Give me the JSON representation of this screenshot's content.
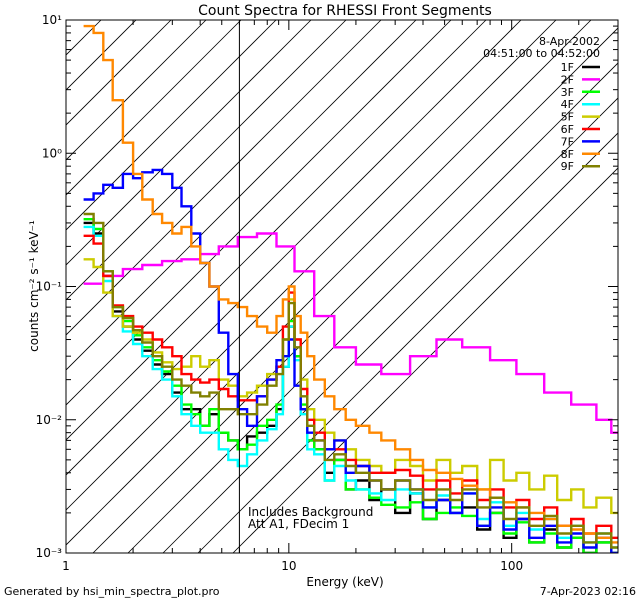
{
  "chart_data": {
    "type": "line",
    "style": "step",
    "title": "Count Spectra for RHESSI Front Segments",
    "xlabel": "Energy (keV)",
    "ylabel": "counts cm⁻² s⁻¹ keV⁻¹",
    "xscale": "log",
    "yscale": "log",
    "xlim": [
      1,
      300
    ],
    "ylim": [
      0.001,
      10
    ],
    "x_ticks": [
      {
        "value": 1,
        "label": "1"
      },
      {
        "value": 10,
        "label": "10"
      },
      {
        "value": 100,
        "label": "100"
      }
    ],
    "y_ticks": [
      {
        "value": 0.001,
        "label": "10⁻³"
      },
      {
        "value": 0.01,
        "label": "10⁻²"
      },
      {
        "value": 0.1,
        "label": "10⁻¹"
      },
      {
        "value": 1,
        "label": "10⁰"
      },
      {
        "value": 10,
        "label": "10¹"
      }
    ],
    "hatched_region_xlim": [
      1,
      6
    ],
    "legend_position": "top-right",
    "annotations": [
      "8-Apr-2002",
      "04:51:00 to 04:52:00"
    ],
    "note_lines": [
      "Includes Background",
      "Att A1, FDecim 1"
    ],
    "series": [
      {
        "name": "1F",
        "color": "#000000",
        "x": [
          1.2,
          1.33,
          1.47,
          1.62,
          1.8,
          2.0,
          2.2,
          2.45,
          2.7,
          3.0,
          3.3,
          3.65,
          4.0,
          4.4,
          4.85,
          5.35,
          5.9,
          6.5,
          7.2,
          8.0,
          8.8,
          9.4,
          10.0,
          10.6,
          11.3,
          12.1,
          13.0,
          14.5,
          16,
          18,
          20,
          23,
          26,
          30,
          35,
          40,
          46,
          53,
          60,
          70,
          80,
          92,
          105,
          120,
          140,
          160,
          185,
          210,
          240,
          280
        ],
        "values": [
          0.3,
          0.25,
          0.12,
          0.065,
          0.05,
          0.04,
          0.033,
          0.026,
          0.022,
          0.016,
          0.012,
          0.012,
          0.009,
          0.011,
          0.008,
          0.007,
          0.006,
          0.0075,
          0.008,
          0.009,
          0.012,
          0.025,
          0.05,
          0.03,
          0.012,
          0.007,
          0.006,
          0.004,
          0.005,
          0.003,
          0.0035,
          0.0025,
          0.003,
          0.002,
          0.0028,
          0.0018,
          0.0025,
          0.002,
          0.0022,
          0.0015,
          0.002,
          0.0013,
          0.0018,
          0.0012,
          0.0015,
          0.0011,
          0.0013,
          0.001,
          0.0012,
          0.001
        ]
      },
      {
        "name": "2F",
        "color": "#ff00ff",
        "x": [
          1.2,
          1.47,
          1.8,
          2.2,
          2.7,
          3.3,
          4.0,
          4.85,
          5.9,
          7.2,
          8.8,
          10.6,
          13.0,
          16,
          20,
          26,
          35,
          46,
          60,
          80,
          105,
          140,
          185,
          240,
          280
        ],
        "values": [
          0.105,
          0.12,
          0.135,
          0.145,
          0.155,
          0.16,
          0.175,
          0.2,
          0.235,
          0.25,
          0.2,
          0.13,
          0.06,
          0.035,
          0.026,
          0.022,
          0.03,
          0.04,
          0.035,
          0.028,
          0.022,
          0.016,
          0.013,
          0.01,
          0.008
        ]
      },
      {
        "name": "3F",
        "color": "#00ff00",
        "x": [
          1.2,
          1.33,
          1.47,
          1.62,
          1.8,
          2.0,
          2.2,
          2.45,
          2.7,
          3.0,
          3.3,
          3.65,
          4.0,
          4.4,
          4.85,
          5.35,
          5.9,
          6.5,
          7.2,
          8.0,
          8.8,
          9.4,
          10.0,
          10.6,
          11.3,
          12.1,
          13.0,
          14.5,
          16,
          18,
          20,
          23,
          26,
          30,
          35,
          40,
          46,
          53,
          60,
          70,
          80,
          92,
          105,
          120,
          140,
          160,
          185,
          210,
          240,
          280
        ],
        "values": [
          0.32,
          0.27,
          0.13,
          0.07,
          0.055,
          0.043,
          0.035,
          0.028,
          0.023,
          0.018,
          0.013,
          0.011,
          0.009,
          0.012,
          0.008,
          0.007,
          0.006,
          0.0065,
          0.009,
          0.01,
          0.013,
          0.03,
          0.055,
          0.03,
          0.013,
          0.007,
          0.006,
          0.0035,
          0.005,
          0.003,
          0.003,
          0.0026,
          0.0023,
          0.0022,
          0.0024,
          0.0018,
          0.002,
          0.0022,
          0.0019,
          0.0016,
          0.002,
          0.0014,
          0.0017,
          0.0012,
          0.0014,
          0.0011,
          0.0013,
          0.001,
          0.0012,
          0.001
        ]
      },
      {
        "name": "4F",
        "color": "#00ffff",
        "x": [
          1.2,
          1.33,
          1.47,
          1.62,
          1.8,
          2.0,
          2.2,
          2.45,
          2.7,
          3.0,
          3.3,
          3.65,
          4.0,
          4.4,
          4.85,
          5.35,
          5.9,
          6.5,
          7.2,
          8.0,
          8.8,
          9.4,
          10.0,
          10.6,
          11.3,
          12.1,
          13.0,
          14.5,
          16,
          18,
          20,
          23,
          26,
          30,
          35,
          40,
          46,
          53,
          60,
          70,
          80,
          92,
          105,
          120,
          140,
          160,
          185,
          210,
          240,
          280
        ],
        "values": [
          0.28,
          0.24,
          0.11,
          0.06,
          0.046,
          0.037,
          0.03,
          0.024,
          0.02,
          0.015,
          0.011,
          0.009,
          0.008,
          0.008,
          0.006,
          0.005,
          0.0045,
          0.0055,
          0.007,
          0.0085,
          0.011,
          0.025,
          0.05,
          0.028,
          0.011,
          0.006,
          0.0055,
          0.0035,
          0.0045,
          0.0035,
          0.003,
          0.0028,
          0.0025,
          0.003,
          0.0028,
          0.0022,
          0.0027,
          0.002,
          0.0028,
          0.0018,
          0.0024,
          0.0016,
          0.002,
          0.0015,
          0.0018,
          0.0013,
          0.0016,
          0.0012,
          0.0014,
          0.0011
        ]
      },
      {
        "name": "5F",
        "color": "#cccc00",
        "x": [
          1.2,
          1.33,
          1.47,
          1.62,
          1.8,
          2.0,
          2.2,
          2.45,
          2.7,
          3.0,
          3.3,
          3.65,
          4.0,
          4.4,
          4.85,
          5.35,
          5.9,
          6.5,
          7.2,
          8.0,
          8.8,
          9.4,
          10.0,
          10.6,
          11.3,
          12.1,
          13.0,
          14.5,
          16,
          18,
          20,
          23,
          26,
          30,
          35,
          40,
          46,
          53,
          60,
          70,
          80,
          92,
          105,
          120,
          140,
          160,
          185,
          210,
          240,
          280
        ],
        "values": [
          0.16,
          0.14,
          0.09,
          0.06,
          0.05,
          0.045,
          0.04,
          0.032,
          0.027,
          0.024,
          0.025,
          0.03,
          0.025,
          0.028,
          0.02,
          0.018,
          0.015,
          0.016,
          0.018,
          0.022,
          0.025,
          0.04,
          0.08,
          0.04,
          0.02,
          0.012,
          0.01,
          0.008,
          0.007,
          0.006,
          0.005,
          0.0045,
          0.004,
          0.005,
          0.0045,
          0.0035,
          0.005,
          0.004,
          0.0045,
          0.003,
          0.005,
          0.0035,
          0.004,
          0.003,
          0.0038,
          0.0025,
          0.003,
          0.0022,
          0.0026,
          0.002
        ]
      },
      {
        "name": "6F",
        "color": "#ff0000",
        "x": [
          1.2,
          1.33,
          1.47,
          1.62,
          1.8,
          2.0,
          2.2,
          2.45,
          2.7,
          3.0,
          3.3,
          3.65,
          4.0,
          4.4,
          4.85,
          5.35,
          5.9,
          6.5,
          7.2,
          8.0,
          8.8,
          9.4,
          10.0,
          10.6,
          11.3,
          12.1,
          13.0,
          14.5,
          16,
          18,
          20,
          23,
          26,
          30,
          35,
          40,
          46,
          53,
          60,
          70,
          80,
          92,
          105,
          120,
          140,
          160,
          185,
          210,
          240,
          280
        ],
        "values": [
          0.24,
          0.21,
          0.12,
          0.072,
          0.06,
          0.05,
          0.045,
          0.04,
          0.035,
          0.03,
          0.022,
          0.02,
          0.019,
          0.02,
          0.017,
          0.015,
          0.014,
          0.014,
          0.015,
          0.02,
          0.025,
          0.05,
          0.09,
          0.04,
          0.017,
          0.01,
          0.008,
          0.006,
          0.006,
          0.005,
          0.0045,
          0.004,
          0.004,
          0.0042,
          0.0038,
          0.003,
          0.0035,
          0.0028,
          0.0035,
          0.0025,
          0.003,
          0.0022,
          0.0025,
          0.0018,
          0.0022,
          0.0016,
          0.0018,
          0.0014,
          0.0016,
          0.0013
        ]
      },
      {
        "name": "7F",
        "color": "#0000ff",
        "x": [
          1.2,
          1.33,
          1.47,
          1.62,
          1.8,
          2.0,
          2.2,
          2.45,
          2.7,
          3.0,
          3.3,
          3.65,
          4.0,
          4.4,
          4.85,
          5.35,
          5.9,
          6.5,
          7.2,
          8.0,
          8.8,
          9.4,
          10.0,
          10.6,
          11.3,
          12.1,
          13.0,
          14.5,
          16,
          18,
          20,
          23,
          26,
          30,
          35,
          40,
          46,
          53,
          60,
          70,
          80,
          92,
          105,
          120,
          140,
          160,
          185,
          210,
          240,
          280
        ],
        "values": [
          0.45,
          0.5,
          0.58,
          0.55,
          0.7,
          0.65,
          0.72,
          0.75,
          0.7,
          0.55,
          0.4,
          0.25,
          0.15,
          0.1,
          0.045,
          0.022,
          0.012,
          0.009,
          0.015,
          0.02,
          0.028,
          0.03,
          0.04,
          0.018,
          0.012,
          0.008,
          0.007,
          0.006,
          0.007,
          0.004,
          0.0045,
          0.0035,
          0.003,
          0.0035,
          0.003,
          0.0022,
          0.0025,
          0.002,
          0.0028,
          0.0016,
          0.0022,
          0.0015,
          0.0018,
          0.0013,
          0.0016,
          0.0012,
          0.0014,
          0.0011,
          0.0013,
          0.001
        ]
      },
      {
        "name": "8F",
        "color": "#ff8800",
        "x": [
          1.2,
          1.33,
          1.47,
          1.62,
          1.8,
          2.0,
          2.2,
          2.45,
          2.7,
          3.0,
          3.3,
          3.65,
          4.0,
          4.4,
          4.85,
          5.35,
          5.9,
          6.5,
          7.2,
          8.0,
          8.8,
          9.4,
          10.0,
          10.6,
          11.3,
          12.1,
          13.0,
          14.5,
          16,
          18,
          20,
          23,
          26,
          30,
          35,
          40,
          46,
          53,
          60,
          70,
          80,
          92,
          105,
          120,
          140,
          160,
          185,
          210,
          240,
          280
        ],
        "values": [
          9.0,
          8.0,
          5.0,
          2.5,
          1.2,
          0.7,
          0.45,
          0.35,
          0.3,
          0.25,
          0.28,
          0.2,
          0.15,
          0.1,
          0.08,
          0.075,
          0.07,
          0.06,
          0.05,
          0.045,
          0.06,
          0.08,
          0.1,
          0.06,
          0.045,
          0.03,
          0.02,
          0.015,
          0.012,
          0.01,
          0.009,
          0.008,
          0.007,
          0.006,
          0.005,
          0.0042,
          0.004,
          0.0036,
          0.0032,
          0.003,
          0.0026,
          0.0024,
          0.0022,
          0.002,
          0.0018,
          0.0016,
          0.0015,
          0.0014,
          0.0013,
          0.0012
        ]
      },
      {
        "name": "9F",
        "color": "#808000",
        "x": [
          1.2,
          1.33,
          1.47,
          1.62,
          1.8,
          2.0,
          2.2,
          2.45,
          2.7,
          3.0,
          3.3,
          3.65,
          4.0,
          4.4,
          4.85,
          5.35,
          5.9,
          6.5,
          7.2,
          8.0,
          8.8,
          9.4,
          10.0,
          10.6,
          11.3,
          12.1,
          13.0,
          14.5,
          16,
          18,
          20,
          23,
          26,
          30,
          35,
          40,
          46,
          53,
          60,
          70,
          80,
          92,
          105,
          120,
          140,
          160,
          185,
          210,
          240,
          280
        ],
        "values": [
          0.35,
          0.3,
          0.13,
          0.07,
          0.058,
          0.047,
          0.038,
          0.03,
          0.025,
          0.02,
          0.018,
          0.016,
          0.015,
          0.016,
          0.012,
          0.012,
          0.011,
          0.011,
          0.013,
          0.018,
          0.022,
          0.04,
          0.075,
          0.035,
          0.015,
          0.009,
          0.007,
          0.005,
          0.0055,
          0.0045,
          0.004,
          0.0035,
          0.003,
          0.0035,
          0.003,
          0.0025,
          0.003,
          0.0025,
          0.003,
          0.0022,
          0.0026,
          0.0018,
          0.0022,
          0.0016,
          0.0019,
          0.0014,
          0.0016,
          0.0012,
          0.0014,
          0.0011
        ]
      }
    ]
  },
  "footer": {
    "generated_by": "Generated by hsi_min_spectra_plot.pro",
    "timestamp": "7-Apr-2023 02:16"
  }
}
